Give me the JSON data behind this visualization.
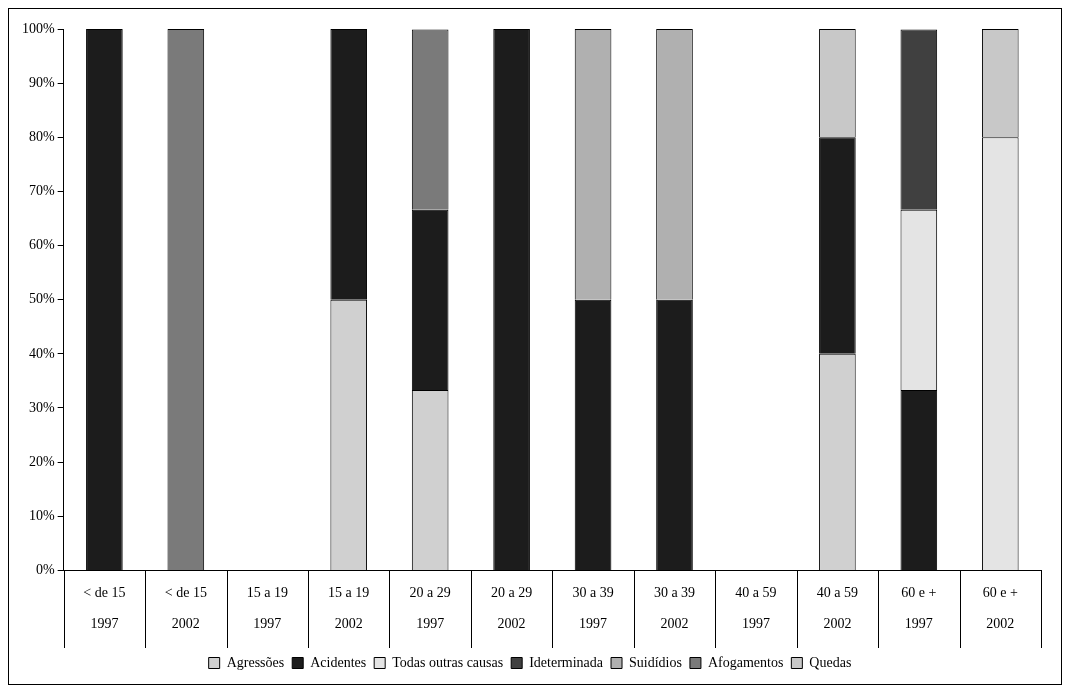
{
  "chart_data": {
    "type": "bar",
    "stacked": true,
    "legend": "bottom",
    "grid": false,
    "categories": [
      "< de 15\n1997",
      "< de 15\n2002",
      "15 a 19\n1997",
      "15 a 19\n2002",
      "20 a 29\n1997",
      "20 a 29\n2002",
      "30 a 39\n1997",
      "30 a 39\n2002",
      "40 a 59\n1997",
      "40 a 59\n2002",
      "60 e +\n1997",
      "60 e +\n2002"
    ],
    "ylim": [
      0,
      100
    ],
    "yticks": [
      {
        "value": 0,
        "label": "0%"
      },
      {
        "value": 10,
        "label": "10%"
      },
      {
        "value": 20,
        "label": "20%"
      },
      {
        "value": 30,
        "label": "30%"
      },
      {
        "value": 40,
        "label": "40%"
      },
      {
        "value": 50,
        "label": "50%"
      },
      {
        "value": 60,
        "label": "60%"
      },
      {
        "value": 70,
        "label": "70%"
      },
      {
        "value": 80,
        "label": "80%"
      },
      {
        "value": 90,
        "label": "90%"
      },
      {
        "value": 100,
        "label": "100%"
      }
    ],
    "series": [
      {
        "name": "Agressões",
        "color": "#d0d0d0",
        "values": [
          0,
          0,
          0,
          50,
          33.3,
          0,
          0,
          0,
          0,
          40,
          0,
          0
        ]
      },
      {
        "name": "Acidentes",
        "color": "#1c1c1c",
        "values": [
          100,
          0,
          0,
          50,
          33.3,
          100,
          50,
          50,
          0,
          40,
          33.3,
          0
        ]
      },
      {
        "name": "Todas outras causas",
        "color": "#e4e4e4",
        "values": [
          0,
          0,
          0,
          0,
          0,
          0,
          0,
          0,
          0,
          0,
          33.3,
          80
        ]
      },
      {
        "name": "Ideterminada",
        "color": "#404040",
        "values": [
          0,
          0,
          0,
          0,
          0,
          0,
          0,
          0,
          0,
          0,
          33.3,
          0
        ]
      },
      {
        "name": "Suidídios",
        "color": "#b0b0b0",
        "values": [
          0,
          0,
          0,
          0,
          0,
          0,
          50,
          50,
          0,
          0,
          0,
          0
        ]
      },
      {
        "name": "Afogamentos",
        "color": "#7a7a7a",
        "values": [
          0,
          100,
          0,
          0,
          33.3,
          0,
          0,
          0,
          0,
          0,
          0,
          0
        ]
      },
      {
        "name": "Quedas",
        "color": "#c8c8c8",
        "values": [
          0,
          0,
          0,
          0,
          0,
          0,
          0,
          0,
          0,
          20,
          0,
          20
        ]
      }
    ]
  }
}
